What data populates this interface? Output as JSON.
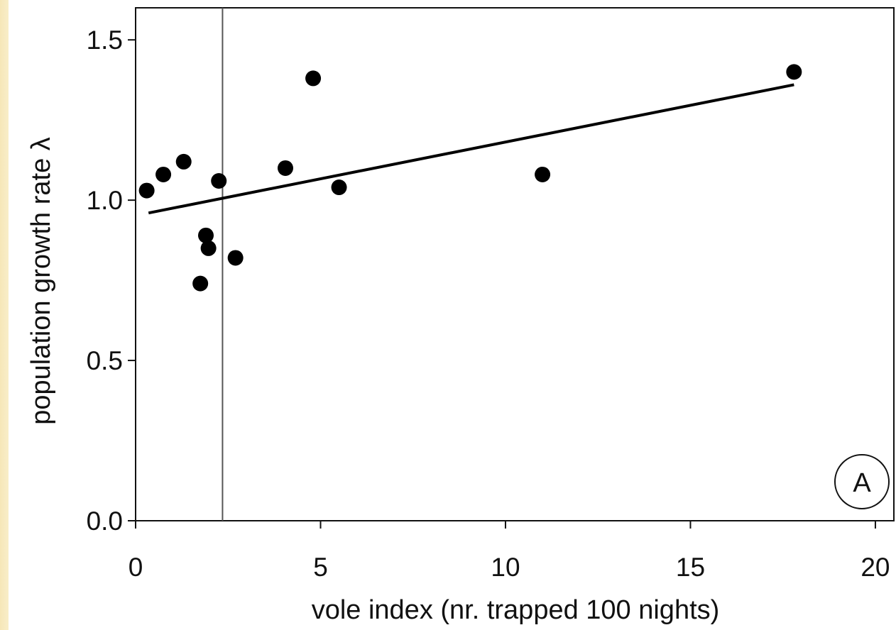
{
  "chart_data": {
    "type": "scatter",
    "xlabel": "vole index (nr. trapped 100 nights)",
    "ylabel": "population growth rate λ",
    "xlim": [
      0,
      20.5
    ],
    "ylim": [
      0,
      1.6
    ],
    "x_ticks": [
      "0",
      "5",
      "10",
      "15",
      "20"
    ],
    "y_ticks": [
      "0.0",
      "0.5",
      "1.0",
      "1.5"
    ],
    "panel_label": "A",
    "grid": false,
    "points": [
      {
        "x": 0.3,
        "y": 1.03
      },
      {
        "x": 0.75,
        "y": 1.08
      },
      {
        "x": 1.3,
        "y": 1.12
      },
      {
        "x": 1.75,
        "y": 0.74
      },
      {
        "x": 1.9,
        "y": 0.89
      },
      {
        "x": 1.97,
        "y": 0.85
      },
      {
        "x": 2.25,
        "y": 1.06
      },
      {
        "x": 2.7,
        "y": 0.82
      },
      {
        "x": 4.05,
        "y": 1.1
      },
      {
        "x": 4.8,
        "y": 1.38
      },
      {
        "x": 5.5,
        "y": 1.04
      },
      {
        "x": 11.0,
        "y": 1.08
      },
      {
        "x": 17.8,
        "y": 1.4
      }
    ],
    "regression_line": {
      "x": [
        0.35,
        17.8
      ],
      "y": [
        0.96,
        1.36
      ]
    },
    "reference_line_x": 2.35
  }
}
